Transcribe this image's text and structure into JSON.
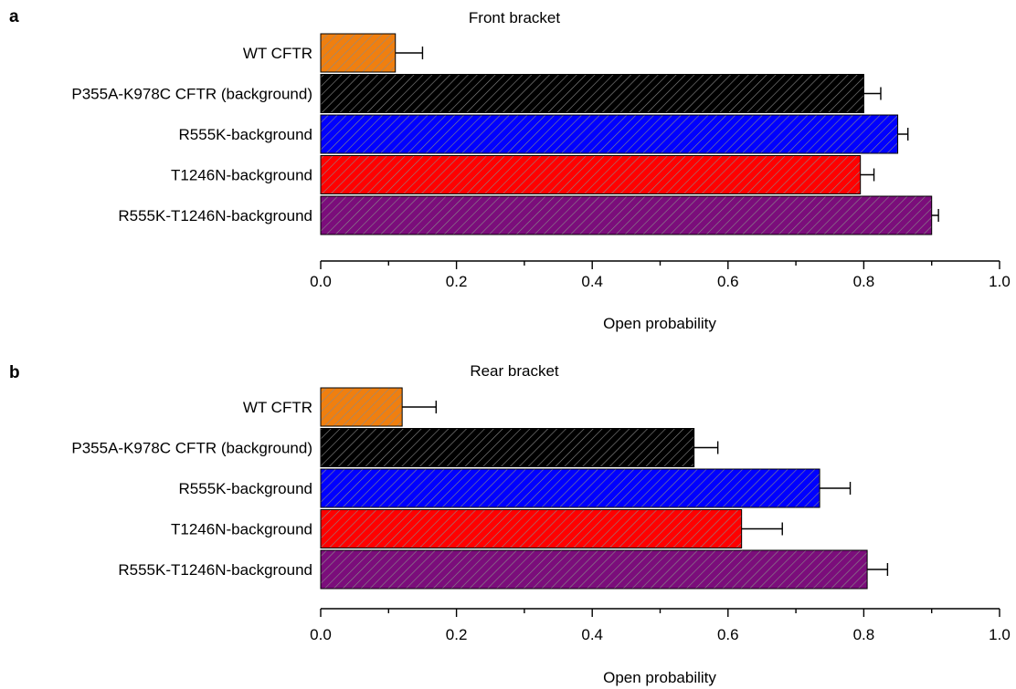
{
  "panels": [
    {
      "letter": "a",
      "title": "Front bracket",
      "xlabel": "Open probability"
    },
    {
      "letter": "b",
      "title": "Rear bracket",
      "xlabel": "Open probability"
    }
  ],
  "chart_data": [
    {
      "type": "bar",
      "orientation": "horizontal",
      "title": "Front bracket",
      "xlabel": "Open probability",
      "ylabel": "",
      "xlim": [
        0,
        1.0
      ],
      "xticks": [
        "0.0",
        "0.2",
        "0.4",
        "0.6",
        "0.8",
        "1.0"
      ],
      "minor_ticks": true,
      "grid": false,
      "categories": [
        "WT CFTR",
        "P355A-K978C CFTR (background)",
        "R555K-background",
        "T1246N-background",
        "R555K-T1246N-background"
      ],
      "values": [
        0.11,
        0.8,
        0.85,
        0.795,
        0.9
      ],
      "errors": [
        0.04,
        0.025,
        0.015,
        0.02,
        0.01
      ],
      "colors": [
        "#F07F0F",
        "#000000",
        "#0000FF",
        "#FF0000",
        "#7B0D7B"
      ],
      "pattern": "diagonal-hatch"
    },
    {
      "type": "bar",
      "orientation": "horizontal",
      "title": "Rear bracket",
      "xlabel": "Open probability",
      "ylabel": "",
      "xlim": [
        0,
        1.0
      ],
      "xticks": [
        "0.0",
        "0.2",
        "0.4",
        "0.6",
        "0.8",
        "1.0"
      ],
      "minor_ticks": true,
      "grid": false,
      "categories": [
        "WT CFTR",
        "P355A-K978C CFTR (background)",
        "R555K-background",
        "T1246N-background",
        "R555K-T1246N-background"
      ],
      "values": [
        0.12,
        0.55,
        0.735,
        0.62,
        0.805
      ],
      "errors": [
        0.05,
        0.035,
        0.045,
        0.06,
        0.03
      ],
      "colors": [
        "#F07F0F",
        "#000000",
        "#0000FF",
        "#FF0000",
        "#7B0D7B"
      ],
      "pattern": "diagonal-hatch"
    }
  ]
}
